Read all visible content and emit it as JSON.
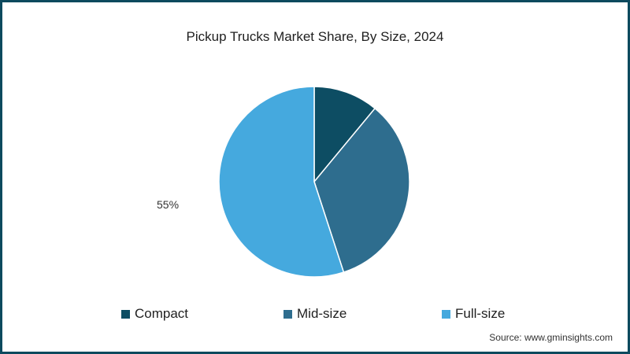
{
  "title": "Pickup Trucks Market Share, By Size, 2024",
  "source": "Source: www.gminsights.com",
  "chart_data": {
    "type": "pie",
    "title": "Pickup Trucks Market Share, By Size, 2024",
    "categories": [
      "Compact",
      "Mid-size",
      "Full-size"
    ],
    "values": [
      11,
      34,
      55
    ],
    "unit": "%",
    "colors": [
      "#0d4d63",
      "#2e6d8e",
      "#45a9de"
    ],
    "data_labels": [
      {
        "category": "Full-size",
        "text": "55%"
      }
    ],
    "start_angle_deg": 0,
    "direction": "clockwise",
    "legend_position": "bottom"
  },
  "legend": [
    {
      "label": "Compact",
      "color": "#0d4d63"
    },
    {
      "label": "Mid-size",
      "color": "#2e6d8e"
    },
    {
      "label": "Full-size",
      "color": "#45a9de"
    }
  ],
  "labels": {
    "full_size": "55%"
  }
}
